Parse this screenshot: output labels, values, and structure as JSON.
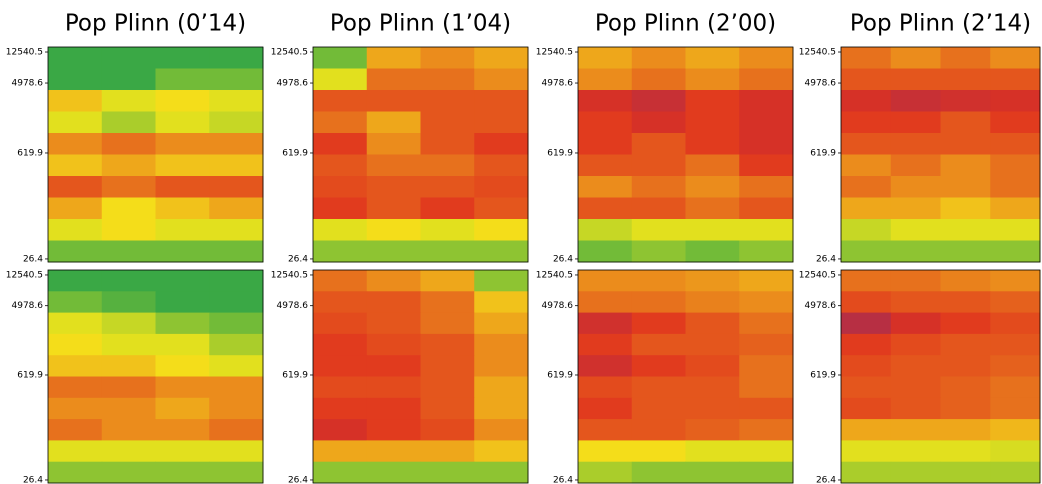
{
  "chart_data": [
    {
      "type": "heatmap",
      "title": "Pop Plinn (0’14)",
      "log_scale": true,
      "ylim": [
        24.1,
        14560
      ],
      "yticks": [
        12540.5,
        4978.6,
        619.9,
        26.4
      ],
      "zlim": [
        0,
        1
      ],
      "colormap": [
        "#3aa845",
        "#f5e61a",
        "#e0321e",
        "#7a2a7a"
      ],
      "values": [
        [
          0,
          0,
          0,
          0
        ],
        [
          0,
          0,
          0.1,
          0.1
        ],
        [
          0.4,
          0.3,
          0.35,
          0.3
        ],
        [
          0.3,
          0.2,
          0.3,
          0.25
        ],
        [
          0.5,
          0.55,
          0.5,
          0.5
        ],
        [
          0.4,
          0.45,
          0.4,
          0.4
        ],
        [
          0.6,
          0.55,
          0.6,
          0.6
        ],
        [
          0.45,
          0.35,
          0.4,
          0.45
        ],
        [
          0.3,
          0.35,
          0.3,
          0.3
        ],
        [
          0.1,
          0.1,
          0.1,
          0.1
        ]
      ]
    },
    {
      "type": "heatmap",
      "title": "Pop Plinn (1’04)",
      "log_scale": true,
      "ylim": [
        24.1,
        14560
      ],
      "yticks": [
        12540.5,
        4978.6,
        619.9,
        26.4
      ],
      "zlim": [
        0,
        1
      ],
      "colormap": [
        "#3aa845",
        "#f5e61a",
        "#e0321e",
        "#7a2a7a"
      ],
      "values": [
        [
          0.1,
          0.45,
          0.5,
          0.45
        ],
        [
          0.3,
          0.55,
          0.55,
          0.5
        ],
        [
          0.6,
          0.6,
          0.6,
          0.6
        ],
        [
          0.55,
          0.45,
          0.6,
          0.6
        ],
        [
          0.65,
          0.5,
          0.6,
          0.65
        ],
        [
          0.6,
          0.55,
          0.55,
          0.6
        ],
        [
          0.62,
          0.6,
          0.6,
          0.62
        ],
        [
          0.65,
          0.6,
          0.65,
          0.6
        ],
        [
          0.3,
          0.35,
          0.3,
          0.35
        ],
        [
          0.15,
          0.15,
          0.15,
          0.15
        ]
      ]
    },
    {
      "type": "heatmap",
      "title": "Pop Plinn (2’00)",
      "log_scale": true,
      "ylim": [
        24.1,
        14560
      ],
      "yticks": [
        12540.5,
        4978.6,
        619.9,
        26.4
      ],
      "zlim": [
        0,
        1
      ],
      "colormap": [
        "#3aa845",
        "#f5e61a",
        "#e0321e",
        "#7a2a7a"
      ],
      "values": [
        [
          0.45,
          0.5,
          0.45,
          0.5
        ],
        [
          0.5,
          0.55,
          0.5,
          0.55
        ],
        [
          0.7,
          0.75,
          0.65,
          0.7
        ],
        [
          0.65,
          0.7,
          0.65,
          0.7
        ],
        [
          0.65,
          0.6,
          0.65,
          0.7
        ],
        [
          0.6,
          0.6,
          0.55,
          0.65
        ],
        [
          0.5,
          0.55,
          0.5,
          0.55
        ],
        [
          0.6,
          0.6,
          0.55,
          0.6
        ],
        [
          0.25,
          0.3,
          0.3,
          0.3
        ],
        [
          0.1,
          0.15,
          0.1,
          0.15
        ]
      ]
    },
    {
      "type": "heatmap",
      "title": "Pop Plinn (2’14)",
      "log_scale": true,
      "ylim": [
        24.1,
        14560
      ],
      "yticks": [
        12540.5,
        4978.6,
        619.9,
        26.4
      ],
      "zlim": [
        0,
        1
      ],
      "colormap": [
        "#3aa845",
        "#f5e61a",
        "#e0321e",
        "#7a2a7a"
      ],
      "values": [
        [
          0.55,
          0.5,
          0.55,
          0.5
        ],
        [
          0.6,
          0.6,
          0.6,
          0.6
        ],
        [
          0.7,
          0.75,
          0.72,
          0.7
        ],
        [
          0.65,
          0.65,
          0.6,
          0.65
        ],
        [
          0.6,
          0.6,
          0.6,
          0.6
        ],
        [
          0.5,
          0.55,
          0.5,
          0.55
        ],
        [
          0.55,
          0.5,
          0.5,
          0.55
        ],
        [
          0.45,
          0.45,
          0.4,
          0.45
        ],
        [
          0.25,
          0.3,
          0.3,
          0.3
        ],
        [
          0.15,
          0.15,
          0.15,
          0.15
        ]
      ]
    },
    {
      "type": "heatmap",
      "log_scale": true,
      "ylim": [
        24.1,
        14560
      ],
      "yticks": [
        12540.5,
        4978.6,
        619.9,
        26.4
      ],
      "zlim": [
        0,
        1
      ],
      "colormap": [
        "#3aa845",
        "#f5e61a",
        "#e0321e",
        "#7a2a7a"
      ],
      "values": [
        [
          0,
          0,
          0,
          0
        ],
        [
          0.1,
          0.05,
          0,
          0
        ],
        [
          0.3,
          0.25,
          0.15,
          0.1
        ],
        [
          0.35,
          0.3,
          0.3,
          0.2
        ],
        [
          0.4,
          0.4,
          0.35,
          0.3
        ],
        [
          0.55,
          0.55,
          0.5,
          0.5
        ],
        [
          0.5,
          0.5,
          0.45,
          0.5
        ],
        [
          0.55,
          0.5,
          0.5,
          0.55
        ],
        [
          0.3,
          0.3,
          0.3,
          0.3
        ],
        [
          0.15,
          0.15,
          0.15,
          0.15
        ]
      ]
    },
    {
      "type": "heatmap",
      "log_scale": true,
      "ylim": [
        24.1,
        14560
      ],
      "yticks": [
        12540.5,
        4978.6,
        619.9,
        26.4
      ],
      "zlim": [
        0,
        1
      ],
      "colormap": [
        "#3aa845",
        "#f5e61a",
        "#e0321e",
        "#7a2a7a"
      ],
      "values": [
        [
          0.55,
          0.5,
          0.45,
          0.15
        ],
        [
          0.6,
          0.6,
          0.55,
          0.4
        ],
        [
          0.62,
          0.6,
          0.55,
          0.45
        ],
        [
          0.65,
          0.62,
          0.6,
          0.5
        ],
        [
          0.65,
          0.65,
          0.6,
          0.5
        ],
        [
          0.62,
          0.62,
          0.6,
          0.45
        ],
        [
          0.65,
          0.65,
          0.6,
          0.45
        ],
        [
          0.7,
          0.65,
          0.62,
          0.5
        ],
        [
          0.45,
          0.45,
          0.45,
          0.4
        ],
        [
          0.15,
          0.15,
          0.15,
          0.15
        ]
      ]
    },
    {
      "type": "heatmap",
      "log_scale": true,
      "ylim": [
        24.1,
        14560
      ],
      "yticks": [
        12540.5,
        4978.6,
        619.9,
        26.4
      ],
      "zlim": [
        0,
        1
      ],
      "colormap": [
        "#3aa845",
        "#f5e61a",
        "#e0321e",
        "#7a2a7a"
      ],
      "values": [
        [
          0.5,
          0.5,
          0.48,
          0.45
        ],
        [
          0.55,
          0.55,
          0.52,
          0.5
        ],
        [
          0.72,
          0.65,
          0.6,
          0.55
        ],
        [
          0.65,
          0.6,
          0.6,
          0.58
        ],
        [
          0.72,
          0.65,
          0.62,
          0.55
        ],
        [
          0.62,
          0.6,
          0.6,
          0.55
        ],
        [
          0.65,
          0.6,
          0.6,
          0.6
        ],
        [
          0.6,
          0.6,
          0.58,
          0.55
        ],
        [
          0.35,
          0.35,
          0.3,
          0.3
        ],
        [
          0.2,
          0.15,
          0.15,
          0.15
        ]
      ]
    },
    {
      "type": "heatmap",
      "log_scale": true,
      "ylim": [
        24.1,
        14560
      ],
      "yticks": [
        12540.5,
        4978.6,
        619.9,
        26.4
      ],
      "zlim": [
        0,
        1
      ],
      "colormap": [
        "#3aa845",
        "#f5e61a",
        "#e0321e",
        "#7a2a7a"
      ],
      "values": [
        [
          0.55,
          0.55,
          0.52,
          0.5
        ],
        [
          0.62,
          0.6,
          0.6,
          0.58
        ],
        [
          0.8,
          0.7,
          0.65,
          0.62
        ],
        [
          0.65,
          0.62,
          0.6,
          0.6
        ],
        [
          0.62,
          0.6,
          0.6,
          0.58
        ],
        [
          0.6,
          0.6,
          0.58,
          0.55
        ],
        [
          0.62,
          0.6,
          0.58,
          0.55
        ],
        [
          0.45,
          0.45,
          0.45,
          0.42
        ],
        [
          0.3,
          0.3,
          0.3,
          0.28
        ],
        [
          0.2,
          0.2,
          0.2,
          0.2
        ]
      ]
    }
  ]
}
